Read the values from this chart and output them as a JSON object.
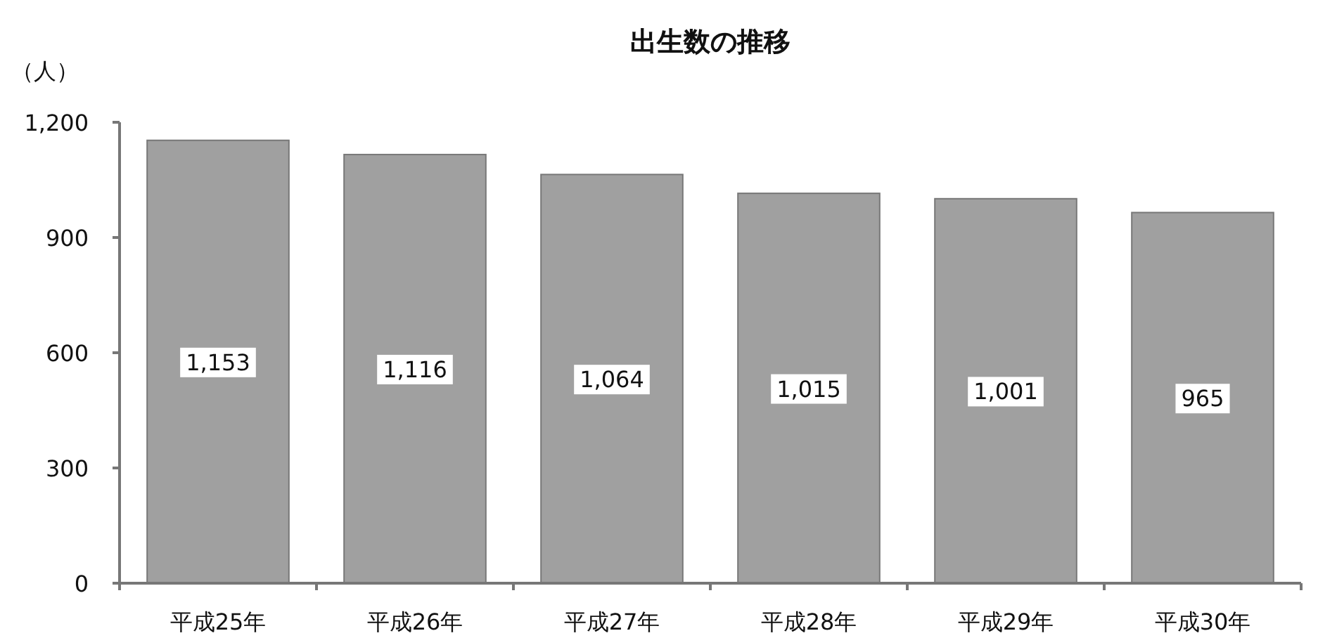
{
  "chart_data": {
    "type": "bar",
    "title": "出生数の推移",
    "ylabel": "（人）",
    "categories": [
      "平成25年",
      "平成26年",
      "平成27年",
      "平成28年",
      "平成29年",
      "平成30年"
    ],
    "values": [
      1153,
      1116,
      1064,
      1015,
      1001,
      965
    ],
    "value_labels": [
      "1,153",
      "1,116",
      "1,064",
      "1,015",
      "1,001",
      "965"
    ],
    "color": "#a0a0a0",
    "ylim": [
      0,
      1200
    ],
    "yticks": [
      0,
      300,
      600,
      900,
      {
        "value": 1200,
        "label": "1,200"
      }
    ],
    "grid": false
  }
}
